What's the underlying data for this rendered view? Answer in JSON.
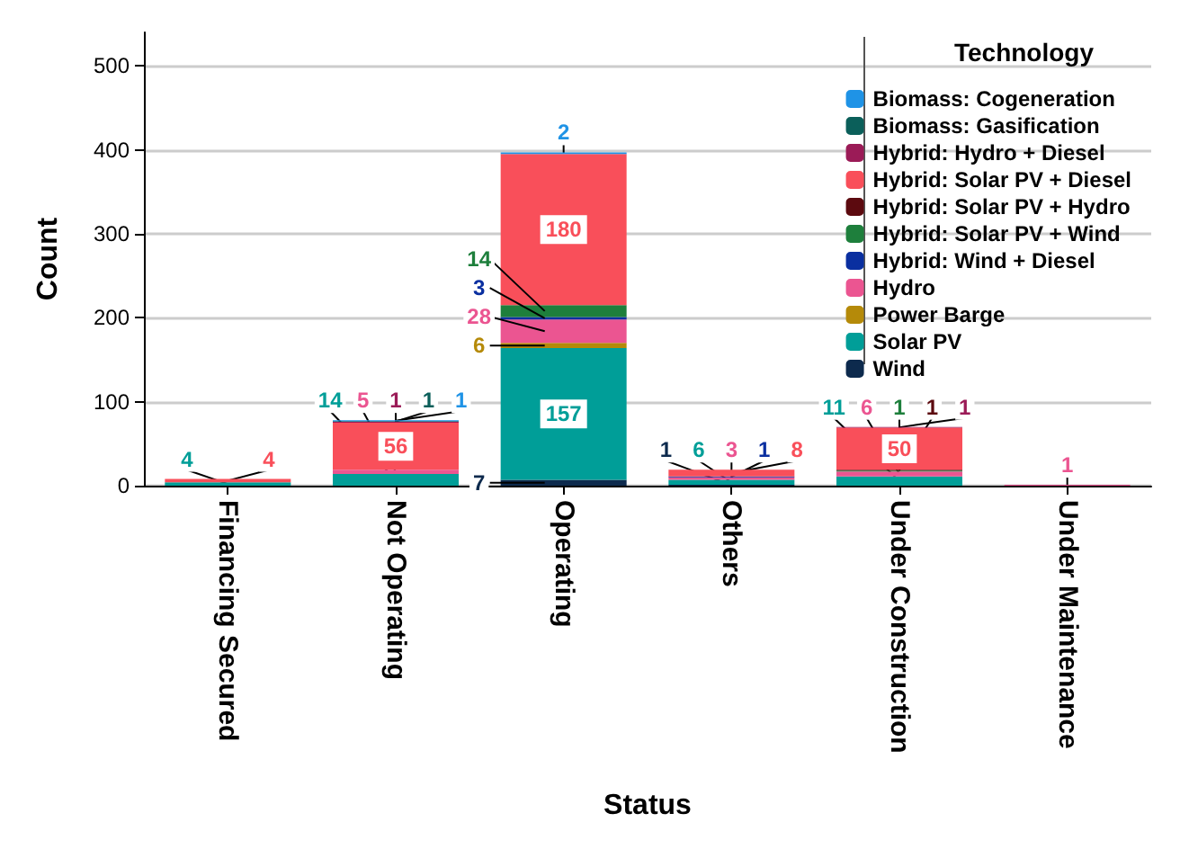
{
  "chart_data": {
    "type": "bar",
    "stacked": true,
    "xlabel": "Status",
    "ylabel": "Count",
    "legend_title": "Technology",
    "legend": "top right",
    "grid": "y",
    "data_labels": true,
    "categories": [
      "Financing Secured",
      "Not Operating",
      "Operating",
      "Others",
      "Under Construction",
      "Under Maintenance"
    ],
    "ylim": [
      0,
      540
    ],
    "yticks": [
      0,
      100,
      200,
      300,
      400,
      500
    ],
    "series": [
      {
        "name": "Wind",
        "color": "#0d2a4d",
        "values": [
          null,
          null,
          7,
          1,
          null,
          null
        ]
      },
      {
        "name": "Solar PV",
        "color": "#009e98",
        "values": [
          4,
          14,
          157,
          6,
          11,
          null
        ]
      },
      {
        "name": "Power Barge",
        "color": "#b58a09",
        "values": [
          null,
          null,
          6,
          null,
          null,
          null
        ]
      },
      {
        "name": "Hydro",
        "color": "#eb5591",
        "values": [
          null,
          5,
          28,
          3,
          6,
          1
        ]
      },
      {
        "name": "Hybrid: Wind + Diesel",
        "color": "#0a2fa0",
        "values": [
          null,
          null,
          3,
          1,
          null,
          null
        ]
      },
      {
        "name": "Hybrid: Solar PV + Wind",
        "color": "#1e7f3c",
        "values": [
          null,
          null,
          14,
          null,
          1,
          null
        ]
      },
      {
        "name": "Hybrid: Solar PV + Hydro",
        "color": "#5c0a0f",
        "values": [
          null,
          null,
          null,
          null,
          1,
          null
        ]
      },
      {
        "name": "Hybrid: Solar PV + Diesel",
        "color": "#f94f5a",
        "values": [
          4,
          56,
          180,
          8,
          50,
          null
        ]
      },
      {
        "name": "Hybrid: Hydro + Diesel",
        "color": "#9b1b57",
        "values": [
          null,
          1,
          null,
          null,
          1,
          null
        ]
      },
      {
        "name": "Biomass: Gasification",
        "color": "#0b5f5a",
        "values": [
          null,
          1,
          null,
          null,
          null,
          null
        ]
      },
      {
        "name": "Biomass: Cogeneration",
        "color": "#1f93e6",
        "values": [
          null,
          1,
          2,
          null,
          null,
          null
        ]
      }
    ]
  }
}
